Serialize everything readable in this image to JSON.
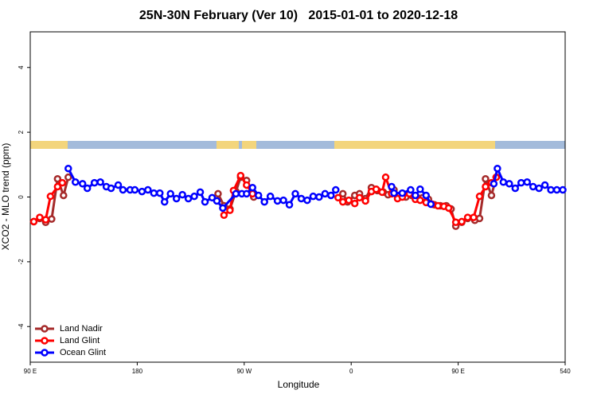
{
  "chart_data": {
    "type": "line",
    "title": "25N-30N February (Ver 10)   2015-01-01 to 2020-12-18",
    "x_label": "Longitude",
    "y_label": "XCO2 - MLO trend (ppm)",
    "xlim": [
      90,
      540
    ],
    "ylim": [
      -5.1,
      5.1
    ],
    "xticks": [
      {
        "value": 90,
        "label": "90 E"
      },
      180,
      {
        "value": 270,
        "label": "90 W"
      },
      {
        "value": 360,
        "label": "0"
      },
      {
        "value": 450,
        "label": "90 E"
      },
      540
    ],
    "yticks": [
      -4,
      -2,
      0,
      2,
      4
    ],
    "legend": "bottom-left",
    "series": [
      {
        "name": "Land Nadir",
        "color": "#a52a2a",
        "x": [
          93,
          98,
          103,
          108,
          113,
          118,
          122,
          200,
          248,
          253,
          258,
          263,
          267,
          272,
          278,
          350,
          353,
          357,
          363,
          367,
          372,
          377,
          382,
          387,
          391,
          396,
          401,
          406,
          411,
          415,
          420,
          425,
          430,
          435,
          440,
          444,
          448,
          453,
          458,
          464,
          468,
          473,
          478,
          482
        ],
        "values": [
          -0.76,
          -0.66,
          -0.78,
          -0.68,
          0.56,
          0.05,
          0.61,
          null,
          0.1,
          -0.27,
          -0.37,
          0.17,
          0.61,
          0.51,
          0.0,
          null,
          0.1,
          -0.15,
          0.05,
          0.1,
          -0.05,
          0.29,
          0.2,
          0.15,
          0.07,
          0.22,
          0.05,
          0.0,
          0.05,
          0.0,
          -0.02,
          -0.07,
          -0.24,
          -0.27,
          -0.27,
          -0.37,
          -0.9,
          -0.78,
          -0.66,
          -0.72,
          -0.66,
          0.56,
          0.05,
          0.61
        ]
      },
      {
        "name": "Land Glint",
        "color": "#ff0000",
        "x": [
          93,
          98,
          103,
          107,
          113,
          117,
          200,
          253,
          258,
          261,
          267,
          272,
          277,
          345,
          349,
          353,
          358,
          363,
          367,
          372,
          377,
          381,
          386,
          389,
          394,
          399,
          403,
          409,
          414,
          418,
          423,
          428,
          433,
          438,
          442,
          448,
          453,
          458,
          463,
          468,
          473,
          478,
          482
        ],
        "values": [
          -0.76,
          -0.63,
          -0.7,
          0.02,
          0.32,
          0.44,
          null,
          -0.56,
          -0.41,
          0.2,
          0.66,
          0.37,
          0.1,
          null,
          -0.02,
          -0.15,
          -0.1,
          -0.2,
          -0.02,
          -0.12,
          0.17,
          0.24,
          0.15,
          0.61,
          0.1,
          -0.05,
          0.0,
          0.1,
          -0.07,
          -0.1,
          -0.17,
          -0.22,
          -0.27,
          -0.29,
          -0.34,
          -0.78,
          -0.76,
          -0.63,
          -0.63,
          0.02,
          0.32,
          0.44,
          0.61
        ]
      },
      {
        "name": "Ocean Glint",
        "color": "#0000ff",
        "x": [
          122,
          128,
          134,
          138,
          144,
          149,
          154,
          158,
          164,
          168,
          174,
          178,
          184,
          189,
          194,
          199,
          203,
          208,
          213,
          218,
          223,
          228,
          233,
          237,
          243,
          247,
          252,
          263,
          268,
          272,
          277,
          282,
          287,
          292,
          298,
          303,
          308,
          313,
          318,
          323,
          328,
          333,
          338,
          343,
          347,
          370,
          394,
          396,
          403,
          410,
          414,
          418,
          423,
          427,
          450,
          480,
          483,
          488,
          493,
          498,
          503,
          508,
          513,
          518,
          523,
          528,
          533,
          538
        ],
        "values": [
          0.88,
          0.46,
          0.41,
          0.27,
          0.44,
          0.46,
          0.32,
          0.27,
          0.37,
          0.22,
          0.22,
          0.22,
          0.17,
          0.22,
          0.12,
          0.12,
          -0.15,
          0.1,
          -0.05,
          0.07,
          -0.05,
          0.02,
          0.15,
          -0.15,
          -0.02,
          -0.12,
          -0.34,
          0.1,
          0.1,
          0.1,
          0.29,
          0.05,
          -0.15,
          0.02,
          -0.12,
          -0.1,
          -0.24,
          0.1,
          -0.05,
          -0.1,
          0.02,
          0.0,
          0.1,
          0.05,
          0.22,
          null,
          0.32,
          0.12,
          0.12,
          0.22,
          0.05,
          0.24,
          0.05,
          -0.22,
          null,
          0.41,
          0.88,
          0.46,
          0.41,
          0.27,
          0.44,
          0.46,
          0.32,
          0.27,
          0.37,
          0.22,
          0.22,
          0.22
        ]
      }
    ]
  }
}
